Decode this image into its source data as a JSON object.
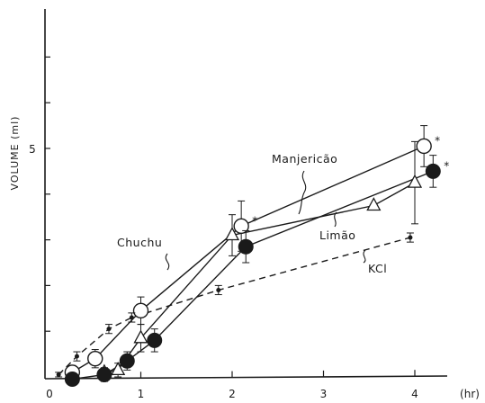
{
  "chart_data": {
    "type": "line",
    "title": "",
    "xlabel": "(hr)",
    "ylabel": "VOLUME (ml)",
    "xlim": [
      0,
      4.5
    ],
    "ylim": [
      0,
      7.5
    ],
    "x_tick_labels": [
      "0",
      "1",
      "2",
      "3",
      "4"
    ],
    "y_tick_labels": [
      "5"
    ],
    "y_tick_values": [
      1,
      2,
      3,
      4,
      5,
      6,
      7
    ],
    "grid": false,
    "series": [
      {
        "name": "Manjericão",
        "marker": "open-circle",
        "line": "solid",
        "x": [
          0.25,
          0.5,
          1.0,
          2.1,
          4.1
        ],
        "y": [
          0.1,
          0.4,
          1.45,
          3.3,
          5.05
        ],
        "err": [
          0.15,
          0.2,
          0.3,
          0.55,
          0.45
        ],
        "significant": [
          false,
          false,
          false,
          true,
          true
        ]
      },
      {
        "name": "Limão",
        "marker": "open-triangle",
        "line": "solid",
        "x": [
          0.6,
          0.75,
          1.0,
          2.0,
          3.55,
          4.0
        ],
        "y": [
          0.1,
          0.15,
          0.85,
          3.1,
          3.75,
          4.25
        ],
        "err": [
          0.1,
          0.15,
          0.3,
          0.45,
          0.0,
          0.9
        ],
        "significant": [
          false,
          false,
          false,
          false,
          false,
          false
        ]
      },
      {
        "name": "Chuchu",
        "marker": "filled-circle",
        "line": "solid",
        "x": [
          0.25,
          0.6,
          0.85,
          1.15,
          2.15,
          4.2
        ],
        "y": [
          -0.05,
          0.05,
          0.35,
          0.8,
          2.85,
          4.5
        ],
        "err": [
          0.1,
          0.15,
          0.2,
          0.25,
          0.35,
          0.35
        ],
        "significant": [
          false,
          false,
          false,
          false,
          false,
          true
        ]
      },
      {
        "name": "KCl",
        "marker": "small-dot",
        "line": "dashed",
        "x": [
          0.1,
          0.3,
          0.65,
          0.9,
          1.85,
          3.95
        ],
        "y": [
          0.05,
          0.45,
          1.05,
          1.3,
          1.9,
          3.05
        ],
        "err": [
          0.05,
          0.1,
          0.1,
          0.1,
          0.1,
          0.1
        ],
        "significant": [
          false,
          false,
          false,
          false,
          false,
          false
        ]
      }
    ],
    "annotations": [
      "Manjericão",
      "Limão",
      "Chuchu",
      "KCl"
    ]
  },
  "colors": {
    "background": "#ffffff",
    "ink": "#1a1a1a"
  }
}
